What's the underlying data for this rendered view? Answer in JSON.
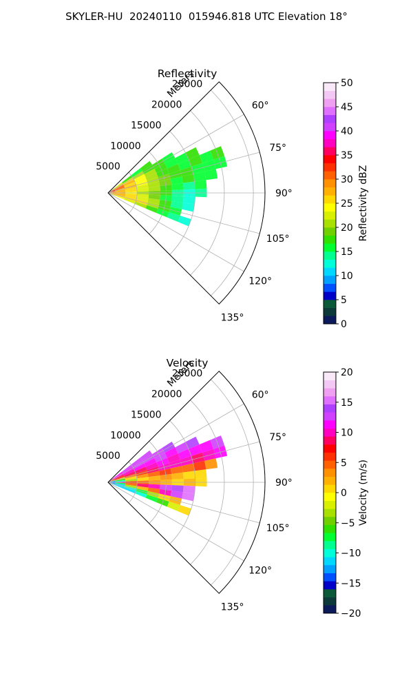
{
  "figure": {
    "suptitle": "SKYLER-HU  20240110  015946.818 UTC Elevation 18°"
  },
  "chart_data": [
    {
      "type": "heatmap",
      "subtype": "polar-sector",
      "title": "Reflectivity",
      "radial_axis_label": "Meters",
      "radial_ticks": [
        5000,
        10000,
        15000,
        20000,
        25000
      ],
      "radial_tick_labels": [
        "5000",
        "10000",
        "15000",
        "20000",
        "25000"
      ],
      "radial_range": [
        0,
        27000
      ],
      "angle_ticks_deg": [
        60,
        75,
        90,
        105,
        120,
        135
      ],
      "angle_tick_labels": [
        "60°",
        "75°",
        "90°",
        "105°",
        "120°",
        "135°"
      ],
      "angle_range_deg": [
        45,
        135
      ],
      "grid": true,
      "colorbar": {
        "label": "Reflectivity dBZ",
        "range": [
          0,
          50
        ],
        "ticks": [
          0,
          5,
          10,
          15,
          20,
          25,
          30,
          35,
          40,
          45,
          50
        ],
        "tick_labels": [
          "0",
          "5",
          "10",
          "15",
          "20",
          "25",
          "30",
          "35",
          "40",
          "45",
          "50"
        ],
        "colors": [
          "#0a1a5a",
          "#0c3a3a",
          "#0a5a3a",
          "#0000c8",
          "#0050ff",
          "#00a0ff",
          "#00d8ff",
          "#00ffd8",
          "#00ff90",
          "#00ff30",
          "#30e000",
          "#70d000",
          "#a8e000",
          "#d8f000",
          "#ffff00",
          "#ffd800",
          "#ffb000",
          "#ff9000",
          "#ff6000",
          "#ff3000",
          "#ff0000",
          "#ff0060",
          "#ff00c0",
          "#ff00ff",
          "#d040ff",
          "#b040ff",
          "#e070ff",
          "#f0a0f0",
          "#f4c8f4",
          "#f8e8f8"
        ]
      },
      "sampled_field": {
        "range_bins_m": [
          500,
          2000,
          4000,
          6000,
          8000,
          10000,
          12000,
          14000,
          16000,
          18000,
          20000,
          22000
        ],
        "azimuth_bins_deg": [
          50,
          55,
          60,
          65,
          70,
          75,
          80,
          85,
          90,
          95,
          100,
          105,
          110,
          115,
          120
        ],
        "values": [
          [
            null,
            null,
            null,
            null,
            null,
            null,
            null,
            null,
            null,
            null,
            null,
            null
          ],
          [
            26,
            22,
            18,
            16,
            17,
            null,
            null,
            null,
            null,
            null,
            null,
            null
          ],
          [
            30,
            28,
            25,
            20,
            18,
            17,
            16,
            null,
            null,
            null,
            null,
            null
          ],
          [
            32,
            30,
            28,
            24,
            20,
            18,
            16,
            16,
            17,
            null,
            null,
            null
          ],
          [
            34,
            30,
            26,
            24,
            20,
            18,
            17,
            16,
            17,
            16,
            17,
            null
          ],
          [
            33,
            28,
            27,
            24,
            21,
            19,
            17,
            17,
            16,
            16,
            16,
            null
          ],
          [
            30,
            28,
            26,
            23,
            20,
            19,
            16,
            17,
            15,
            16,
            null,
            null
          ],
          [
            28,
            27,
            25,
            22,
            20,
            18,
            15,
            14,
            15,
            null,
            null,
            null
          ],
          [
            30,
            27,
            24,
            20,
            19,
            17,
            14,
            13,
            14,
            null,
            null,
            null
          ],
          [
            28,
            27,
            25,
            22,
            19,
            16,
            14,
            13,
            null,
            null,
            null,
            null
          ],
          [
            27,
            27,
            26,
            23,
            20,
            17,
            14,
            13,
            null,
            null,
            null,
            null
          ],
          [
            24,
            26,
            26,
            25,
            20,
            18,
            15,
            null,
            null,
            null,
            null,
            null
          ],
          [
            22,
            24,
            22,
            20,
            18,
            15,
            14,
            13,
            null,
            null,
            null,
            null
          ],
          [
            null,
            null,
            null,
            null,
            null,
            null,
            null,
            null,
            null,
            null,
            null,
            null
          ],
          [
            null,
            null,
            null,
            null,
            null,
            null,
            null,
            null,
            null,
            null,
            null,
            null
          ]
        ]
      }
    },
    {
      "type": "heatmap",
      "subtype": "polar-sector",
      "title": "Velocity",
      "radial_axis_label": "Meters",
      "radial_ticks": [
        5000,
        10000,
        15000,
        20000,
        25000
      ],
      "radial_tick_labels": [
        "5000",
        "10000",
        "15000",
        "20000",
        "25000"
      ],
      "radial_range": [
        0,
        27000
      ],
      "angle_ticks_deg": [
        60,
        75,
        90,
        105,
        120,
        135
      ],
      "angle_tick_labels": [
        "60°",
        "75°",
        "90°",
        "105°",
        "120°",
        "135°"
      ],
      "angle_range_deg": [
        45,
        135
      ],
      "grid": true,
      "colorbar": {
        "label": "Velocity (m/s)",
        "range": [
          -20,
          20
        ],
        "ticks": [
          -20,
          -15,
          -10,
          -5,
          0,
          5,
          10,
          15,
          20
        ],
        "tick_labels": [
          "−20",
          "−15",
          "−10",
          "−5",
          "0",
          "5",
          "10",
          "15",
          "20"
        ],
        "colors": [
          "#0a1a5a",
          "#0c3a3a",
          "#0a5a3a",
          "#0000c8",
          "#0050ff",
          "#00a0ff",
          "#00d8ff",
          "#00ffd8",
          "#00ff90",
          "#00ff30",
          "#30e000",
          "#70d000",
          "#a8e000",
          "#d8f000",
          "#ffff00",
          "#ffd800",
          "#ffb000",
          "#ff9000",
          "#ff6000",
          "#ff3000",
          "#ff0000",
          "#ff0060",
          "#ff00c0",
          "#ff00ff",
          "#d040ff",
          "#b040ff",
          "#e070ff",
          "#f0a0f0",
          "#f4c8f4",
          "#f8e8f8"
        ]
      },
      "sampled_field": {
        "range_bins_m": [
          500,
          2000,
          4000,
          6000,
          8000,
          10000,
          12000,
          14000,
          16000,
          18000,
          20000,
          22000
        ],
        "azimuth_bins_deg": [
          50,
          55,
          60,
          65,
          70,
          75,
          80,
          85,
          90,
          95,
          100,
          105,
          110,
          115,
          120
        ],
        "values": [
          [
            null,
            null,
            null,
            null,
            null,
            null,
            null,
            null,
            null,
            null,
            null,
            null
          ],
          [
            10,
            11,
            12,
            12,
            13,
            null,
            null,
            null,
            null,
            null,
            null,
            null
          ],
          [
            8,
            10,
            11,
            12,
            13,
            13,
            14,
            null,
            null,
            null,
            null,
            null
          ],
          [
            6,
            8,
            10,
            11,
            11,
            12,
            11,
            12,
            14,
            null,
            null,
            null
          ],
          [
            4,
            6,
            8,
            9,
            10,
            11,
            10,
            11,
            11,
            11,
            12,
            null
          ],
          [
            -8,
            0,
            4,
            6,
            8,
            10,
            10,
            10,
            9,
            10,
            11,
            null
          ],
          [
            -12,
            -6,
            0,
            3,
            5,
            6,
            5,
            4,
            6,
            3,
            null,
            null
          ],
          [
            -14,
            -10,
            -4,
            0,
            2,
            3,
            2,
            1,
            1,
            null,
            null,
            null
          ],
          [
            14,
            10,
            6,
            4,
            3,
            2,
            1,
            2,
            1,
            null,
            null,
            null
          ],
          [
            -12,
            -8,
            4,
            8,
            10,
            12,
            14,
            15,
            null,
            null,
            null,
            null
          ],
          [
            -14,
            -12,
            -4,
            2,
            4,
            10,
            12,
            15,
            null,
            null,
            null,
            null
          ],
          [
            -13,
            -12,
            -10,
            -8,
            -4,
            0,
            2,
            null,
            null,
            null,
            null,
            null
          ],
          [
            -11,
            -12,
            -11,
            -10,
            -8,
            -6,
            -2,
            1,
            null,
            null,
            null,
            null
          ],
          [
            null,
            null,
            null,
            null,
            null,
            null,
            null,
            null,
            null,
            null,
            null,
            null
          ],
          [
            null,
            null,
            null,
            null,
            null,
            null,
            null,
            null,
            null,
            null,
            null,
            null
          ]
        ]
      }
    }
  ]
}
